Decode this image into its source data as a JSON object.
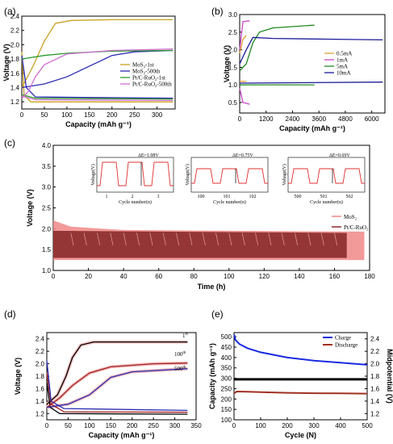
{
  "chart_data": [
    {
      "panel": "(a)",
      "type": "line",
      "xlabel": "Capacity (mAh g⁻¹)",
      "ylabel": "Voltage (V)",
      "xlim": [
        0,
        340
      ],
      "ylim": [
        1.1,
        2.4
      ],
      "xticks": [
        "0",
        "50",
        "100",
        "150",
        "200",
        "250",
        "300"
      ],
      "yticks": [
        "1.2",
        "1.4",
        "1.6",
        "1.8",
        "2.0",
        "2.2",
        "2.4"
      ],
      "legend_position": "bottom-right",
      "series": [
        {
          "name": "MoS₂-1st",
          "color": "#c8a020",
          "charge": [
            [
              0,
              1.4
            ],
            [
              25,
              1.7
            ],
            [
              50,
              2.05
            ],
            [
              75,
              2.3
            ],
            [
              110,
              2.34
            ],
            [
              200,
              2.35
            ],
            [
              335,
              2.35
            ]
          ],
          "discharge": [
            [
              0,
              1.9
            ],
            [
              5,
              1.3
            ],
            [
              20,
              1.2
            ],
            [
              100,
              1.2
            ],
            [
              335,
              1.2
            ]
          ]
        },
        {
          "name": "MoS₂-500th",
          "color": "#2a2ab0",
          "charge": [
            [
              0,
              1.4
            ],
            [
              50,
              1.45
            ],
            [
              100,
              1.55
            ],
            [
              150,
              1.7
            ],
            [
              200,
              1.85
            ],
            [
              250,
              1.9
            ],
            [
              335,
              1.92
            ]
          ],
          "discharge": [
            [
              0,
              1.85
            ],
            [
              10,
              1.4
            ],
            [
              30,
              1.27
            ],
            [
              150,
              1.26
            ],
            [
              335,
              1.25
            ]
          ]
        },
        {
          "name": "Pt/C-RuO₂-1st",
          "color": "#2a9a2a",
          "charge": [
            [
              0,
              1.8
            ],
            [
              50,
              1.85
            ],
            [
              100,
              1.88
            ],
            [
              200,
              1.91
            ],
            [
              335,
              1.92
            ]
          ],
          "discharge": [
            [
              0,
              1.3
            ],
            [
              30,
              1.25
            ],
            [
              335,
              1.24
            ]
          ]
        },
        {
          "name": "Pt/C-RuO₂-500th",
          "color": "#d070d0",
          "charge": [
            [
              0,
              1.25
            ],
            [
              15,
              1.35
            ],
            [
              30,
              1.55
            ],
            [
              50,
              1.72
            ],
            [
              100,
              1.87
            ],
            [
              200,
              1.92
            ],
            [
              335,
              1.94
            ]
          ],
          "discharge": [
            [
              0,
              1.28
            ],
            [
              30,
              1.23
            ],
            [
              335,
              1.22
            ]
          ]
        }
      ]
    },
    {
      "panel": "(b)",
      "type": "line",
      "xlabel": "Capacity (mAh g⁻¹)",
      "ylabel": "Voltage (V)",
      "xlim": [
        0,
        6600
      ],
      "ylim": [
        0.2,
        3.0
      ],
      "xticks": [
        "0",
        "1200",
        "2400",
        "3600",
        "4800",
        "6000"
      ],
      "yticks": [
        "0.5",
        "1.0",
        "1.5",
        "2.0",
        "2.5",
        "3.0"
      ],
      "legend_position": "right",
      "series": [
        {
          "name": "0.5mA",
          "color": "#e0a030",
          "charge": [
            [
              0,
              1.9
            ],
            [
              150,
              2.3
            ],
            [
              300,
              2.4
            ]
          ],
          "discharge": [
            [
              0,
              1.1
            ],
            [
              300,
              1.1
            ]
          ]
        },
        {
          "name": "1mA",
          "color": "#cc44cc",
          "charge": [
            [
              0,
              2.0
            ],
            [
              150,
              2.8
            ],
            [
              450,
              2.82
            ]
          ],
          "discharge": [
            [
              0,
              0.9
            ],
            [
              150,
              0.5
            ],
            [
              450,
              0.45
            ]
          ]
        },
        {
          "name": "5mA",
          "color": "#228822",
          "charge": [
            [
              0,
              1.4
            ],
            [
              300,
              1.6
            ],
            [
              600,
              2.2
            ],
            [
              900,
              2.5
            ],
            [
              1500,
              2.62
            ],
            [
              3400,
              2.7
            ]
          ],
          "discharge": [
            [
              0,
              1.0
            ],
            [
              3400,
              1.0
            ]
          ]
        },
        {
          "name": "10mA",
          "color": "#1a1a99",
          "charge": [
            [
              0,
              1.6
            ],
            [
              300,
              2.0
            ],
            [
              600,
              2.35
            ],
            [
              1500,
              2.32
            ],
            [
              4000,
              2.3
            ],
            [
              6500,
              2.28
            ]
          ],
          "discharge": [
            [
              0,
              1.05
            ],
            [
              6500,
              1.08
            ]
          ]
        }
      ]
    },
    {
      "panel": "(c)",
      "type": "line",
      "xlabel": "Time (h)",
      "ylabel": "Voltage (V)",
      "xlim": [
        0,
        180
      ],
      "ylim": [
        1.0,
        4.0
      ],
      "xticks": [
        "0",
        "20",
        "40",
        "60",
        "80",
        "100",
        "120",
        "140",
        "160",
        "180"
      ],
      "yticks": [
        "1.0",
        "1.5",
        "2.0",
        "2.5",
        "3.0",
        "3.5",
        "4.0"
      ],
      "legend_position": "bottom-right",
      "series": [
        {
          "name": "MoS₂",
          "color": "#f08888",
          "upper": [
            [
              0,
              2.2
            ],
            [
              10,
              2.05
            ],
            [
              40,
              1.97
            ],
            [
              100,
              1.95
            ],
            [
              177,
              1.93
            ]
          ],
          "lower": [
            [
              0,
              1.25
            ],
            [
              177,
              1.25
            ]
          ],
          "end_h": 177
        },
        {
          "name": "Pt/C-RuO₂",
          "color": "#8b2b2b",
          "upper": [
            [
              0,
              1.95
            ],
            [
              167,
              1.9
            ]
          ],
          "lower": [
            [
              0,
              1.3
            ],
            [
              167,
              1.3
            ]
          ],
          "end_h": 167
        }
      ],
      "insets": [
        {
          "ylabel": "Voltage(V)",
          "xlabel": "Cycle number(n)",
          "xticks": [
            "1",
            "2",
            "3"
          ],
          "annotation": "ΔE=1.08V"
        },
        {
          "ylabel": "Voltage(V)",
          "xlabel": "Cycle number(n)",
          "xticks": [
            "100",
            "101",
            "102"
          ],
          "annotation": "ΔE=0.75V"
        },
        {
          "ylabel": "Voltage(V)",
          "xlabel": "Cycle number(n)",
          "xticks": [
            "500",
            "501",
            "502"
          ],
          "annotation": "ΔE=0.69V"
        }
      ]
    },
    {
      "panel": "(d)",
      "type": "line",
      "xlabel": "Capacity (mAh g⁻¹)",
      "ylabel": "Voltage (V)",
      "xlim": [
        0,
        350
      ],
      "ylim": [
        1.1,
        2.5
      ],
      "xticks": [
        "0",
        "50",
        "100",
        "150",
        "200",
        "250",
        "300",
        "350"
      ],
      "yticks": [
        "1.2",
        "1.4",
        "1.6",
        "1.8",
        "2.0",
        "2.2",
        "2.4"
      ],
      "labels": [
        {
          "text": "1",
          "sup": "st",
          "color": "#000000"
        },
        {
          "text": "100",
          "sup": "th",
          "color": "#b02020"
        },
        {
          "text": "500",
          "sup": "th",
          "color": "#2a2ab0"
        }
      ],
      "series": [
        {
          "name": "1st",
          "color": "#000000",
          "charge": [
            [
              0,
              1.35
            ],
            [
              25,
              1.5
            ],
            [
              45,
              1.8
            ],
            [
              60,
              2.1
            ],
            [
              80,
              2.3
            ],
            [
              110,
              2.35
            ],
            [
              330,
              2.35
            ]
          ],
          "discharge": [
            [
              0,
              1.7
            ],
            [
              8,
              1.3
            ],
            [
              30,
              1.2
            ],
            [
              330,
              1.19
            ]
          ]
        },
        {
          "name": "100th",
          "color": "#a02020",
          "charge": [
            [
              0,
              1.3
            ],
            [
              30,
              1.45
            ],
            [
              60,
              1.65
            ],
            [
              100,
              1.85
            ],
            [
              150,
              1.95
            ],
            [
              250,
              2.0
            ],
            [
              330,
              2.01
            ]
          ],
          "discharge": [
            [
              0,
              1.85
            ],
            [
              10,
              1.35
            ],
            [
              40,
              1.23
            ],
            [
              330,
              1.22
            ]
          ]
        },
        {
          "name": "500th",
          "color": "#2a2ab0",
          "charge": [
            [
              0,
              1.3
            ],
            [
              50,
              1.35
            ],
            [
              100,
              1.5
            ],
            [
              150,
              1.78
            ],
            [
              200,
              1.87
            ],
            [
              330,
              1.92
            ]
          ],
          "discharge": [
            [
              0,
              2.05
            ],
            [
              10,
              1.4
            ],
            [
              40,
              1.28
            ],
            [
              330,
              1.25
            ]
          ]
        }
      ]
    },
    {
      "panel": "(e)",
      "type": "line",
      "xlabel": "Cycle (N)",
      "ylabel_left": "Capacity (mAh g⁻¹)",
      "ylabel_right": "Midpotential (V)",
      "xlim": [
        0,
        500
      ],
      "ylim_left": [
        100,
        520
      ],
      "ylim_right": [
        1.1,
        2.5
      ],
      "xticks": [
        "0",
        "100",
        "200",
        "300",
        "400",
        "500"
      ],
      "yticks_left": [
        "100",
        "150",
        "200",
        "250",
        "300",
        "350",
        "400",
        "450",
        "500"
      ],
      "yticks_right": [
        "1.2",
        "1.4",
        "1.6",
        "1.8",
        "2.0",
        "2.2",
        "2.4"
      ],
      "legend_position": "top-right",
      "series": [
        {
          "name": "Charge",
          "color": "#1a2ae0",
          "axis": "left",
          "points": [
            [
              1,
              510
            ],
            [
              5,
              485
            ],
            [
              20,
              465
            ],
            [
              50,
              445
            ],
            [
              100,
              425
            ],
            [
              200,
              400
            ],
            [
              300,
              385
            ],
            [
              400,
              375
            ],
            [
              500,
              365
            ]
          ]
        },
        {
          "name": "Discharge",
          "color": "#a03020",
          "axis": "left",
          "points": [
            [
              1,
              228
            ],
            [
              10,
              236
            ],
            [
              50,
              235
            ],
            [
              100,
              233
            ],
            [
              200,
              230
            ],
            [
              300,
              228
            ],
            [
              400,
              227
            ],
            [
              500,
              226
            ]
          ]
        },
        {
          "name": "",
          "color": "#000000",
          "axis": "right",
          "points": [
            [
              1,
              1.75
            ],
            [
              500,
              1.75
            ]
          ]
        }
      ]
    }
  ]
}
